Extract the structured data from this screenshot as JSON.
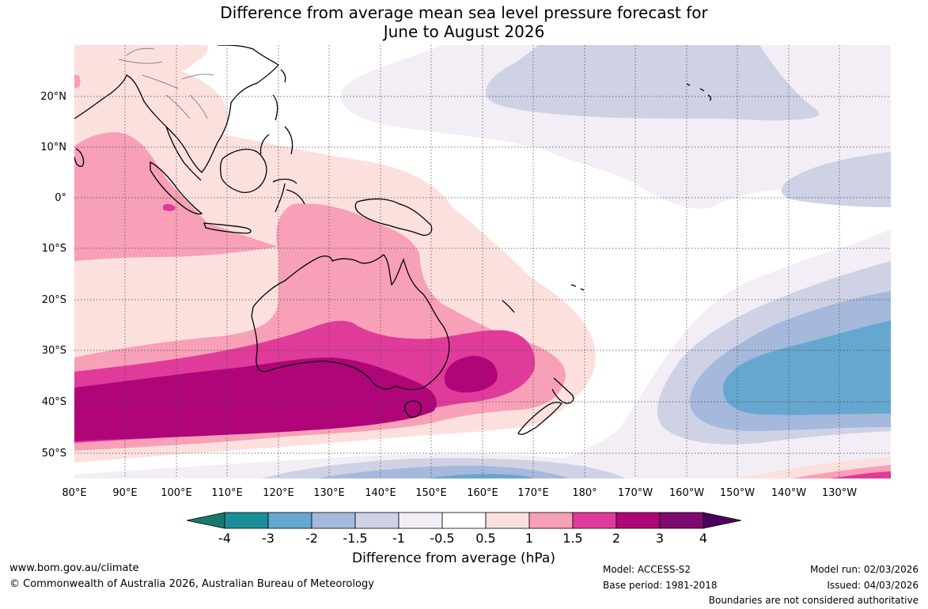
{
  "title": {
    "line1": "Difference from average mean sea level pressure forecast for",
    "line2": "June to August 2026"
  },
  "axes": {
    "lon_labels": [
      "80°E",
      "90°E",
      "100°E",
      "110°E",
      "120°E",
      "130°E",
      "140°E",
      "150°E",
      "160°E",
      "170°E",
      "180°",
      "170°W",
      "160°W",
      "150°W",
      "140°W",
      "130°W"
    ],
    "lat_labels": [
      "20°N",
      "10°N",
      "0°",
      "10°S",
      "20°S",
      "30°S",
      "40°S",
      "50°S"
    ]
  },
  "colorbar": {
    "ticks": [
      "-4",
      "-3",
      "-2",
      "-1.5",
      "-1",
      "-0.5",
      "0.5",
      "1",
      "1.5",
      "2",
      "3",
      "4"
    ],
    "colors": [
      "#167a6e",
      "#1b8f98",
      "#66a7cf",
      "#a4b9db",
      "#cfd1e5",
      "#f3eef5",
      "#ffffff",
      "#fce0de",
      "#f7a0b8",
      "#df3b9a",
      "#af0579",
      "#7e0a70",
      "#4b005e"
    ],
    "title": "Difference from average (hPa)"
  },
  "footer": {
    "website": "www.bom.gov.au/climate",
    "copyright": "© Commonwealth of Australia 2026, Australian Bureau of Meteorology",
    "model": "Model: ACCESS-S2",
    "base_period": "Base period: 1981-2018",
    "model_run": "Model run: 02/03/2026",
    "issued": "Issued: 04/03/2026",
    "disclaimer": "Boundaries are not considered authoritative"
  },
  "colors": {
    "c_neg05": "#f3eef5",
    "c_neg1": "#cfd1e5",
    "c_neg15": "#a4b9db",
    "c_neg2": "#66a7cf",
    "c_pos05": "#fce0de",
    "c_pos1": "#f7a0b8",
    "c_pos15": "#df3b9a",
    "c_pos2": "#af0579"
  }
}
